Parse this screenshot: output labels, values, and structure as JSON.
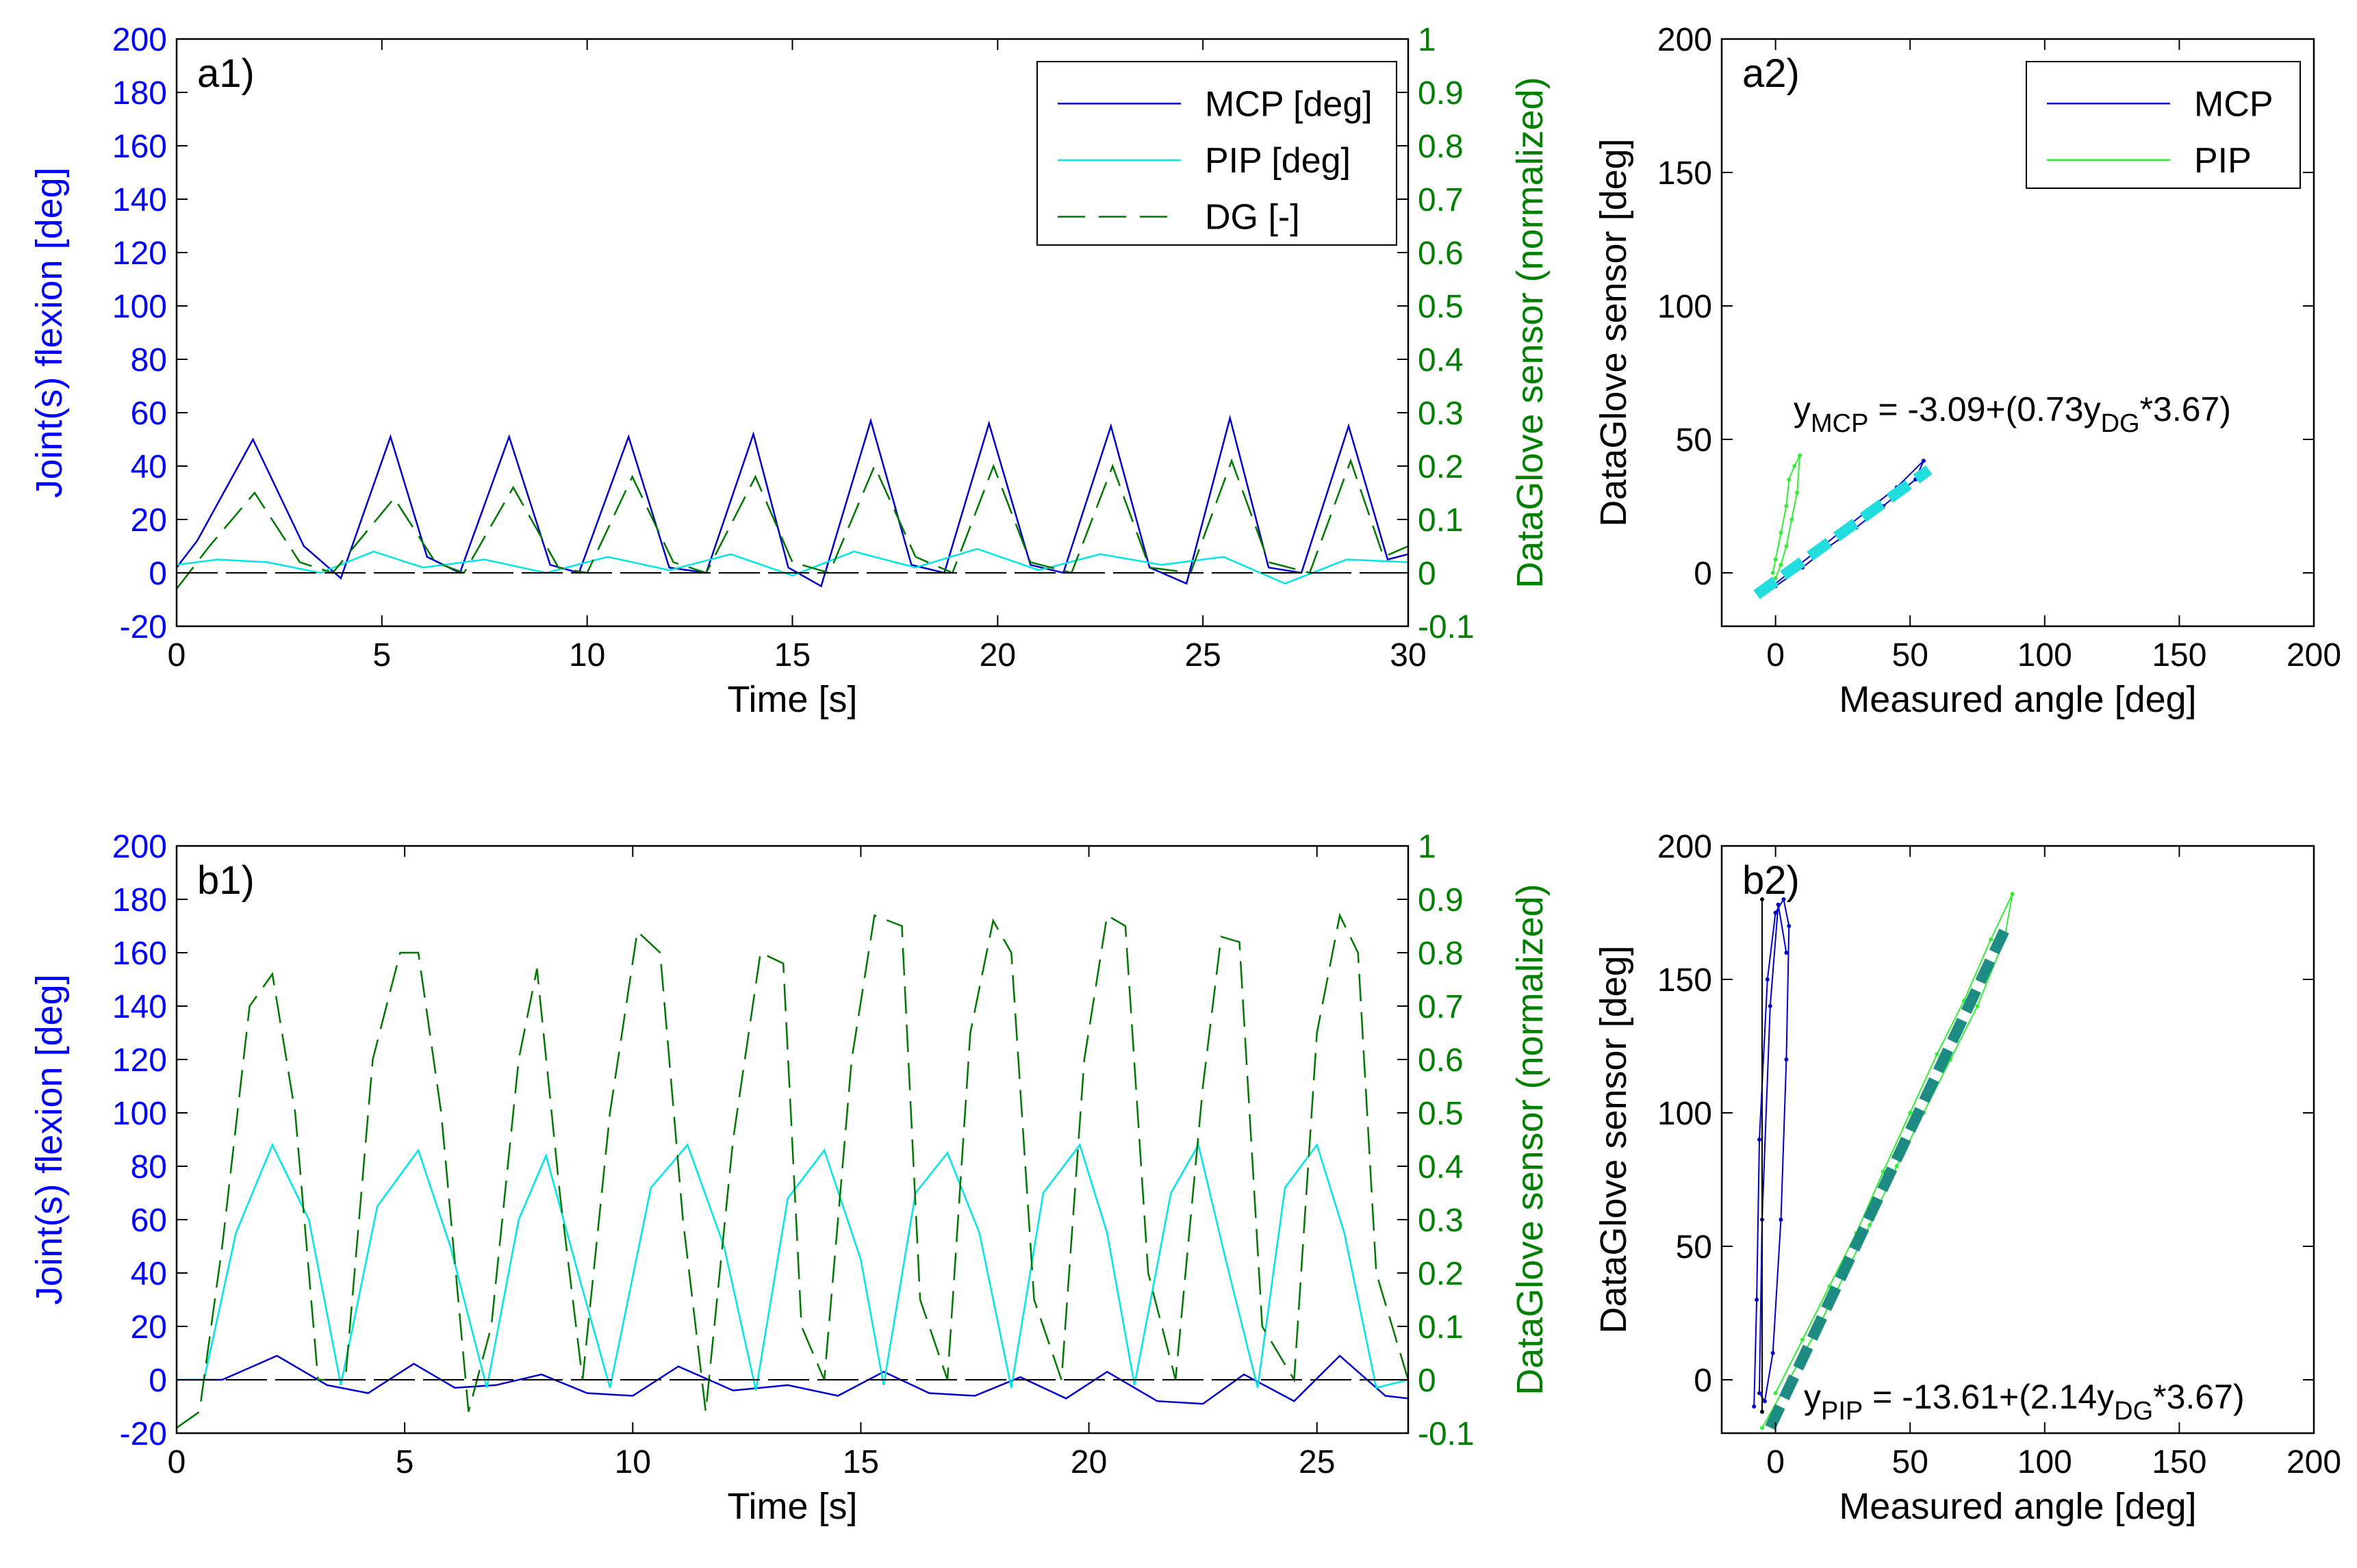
{
  "colors": {
    "mcp": "#0000cc",
    "pip_time": "#00e5e5",
    "pip_scatter": "#33ee33",
    "dg": "#007700",
    "axis": "#000000",
    "left_axis_text": "#0000ff",
    "right_axis_text": "#008000",
    "fit_a2": "#22dddd",
    "fit_b2": "#1e8c82"
  },
  "chart_data": [
    {
      "id": "a1",
      "type": "line",
      "panel_label": "a1)",
      "xlabel": "Time [s]",
      "ylabel": "Joint(s) flexion [deg]",
      "y2label": "DataGlove sensor (normalized)",
      "xlim": [
        0,
        30
      ],
      "ylim": [
        -20,
        200
      ],
      "y2lim": [
        -0.1,
        1
      ],
      "xticks": [
        "0",
        "5",
        "10",
        "15",
        "20",
        "25",
        "30"
      ],
      "yticks": [
        "-20",
        "0",
        "20",
        "40",
        "60",
        "80",
        "100",
        "120",
        "140",
        "160",
        "180",
        "200"
      ],
      "y2ticks": [
        "-0.1",
        "0",
        "0.1",
        "0.2",
        "0.3",
        "0.4",
        "0.5",
        "0.6",
        "0.7",
        "0.8",
        "0.9",
        "1"
      ],
      "legend": [
        "MCP [deg]",
        "PIP [deg]",
        "DG [-]"
      ],
      "legend_position": "top-right",
      "series": [
        {
          "name": "MCP",
          "axis": "left",
          "style": "solid",
          "color": "mcp",
          "x": [
            0,
            0.5,
            1.86,
            3.1,
            4.0,
            5.21,
            6.1,
            6.9,
            8.1,
            9.1,
            9.8,
            11.01,
            12.0,
            12.9,
            14.05,
            14.9,
            15.7,
            16.91,
            17.9,
            18.7,
            19.79,
            20.8,
            21.6,
            22.76,
            23.7,
            24.6,
            25.66,
            26.6,
            27.4,
            28.55,
            29.5,
            30
          ],
          "values": [
            2,
            12,
            50,
            10,
            -2,
            51,
            6,
            0,
            51,
            3,
            0,
            51,
            2,
            0,
            52,
            2,
            -5,
            57,
            3,
            0,
            56,
            3,
            0,
            55,
            2,
            -4,
            58,
            2,
            0,
            55,
            5,
            7
          ]
        },
        {
          "name": "PIP",
          "axis": "left",
          "style": "solid",
          "color": "pip_time",
          "x": [
            0,
            1.0,
            2.2,
            3.5,
            4.8,
            6.0,
            7.5,
            9.0,
            10.5,
            12.0,
            13.5,
            15.0,
            16.5,
            18.0,
            19.5,
            21.0,
            22.5,
            24.0,
            25.5,
            27.0,
            28.5,
            30
          ],
          "values": [
            3,
            5,
            4,
            0,
            8,
            2,
            5,
            0,
            6,
            1,
            7,
            -1,
            8,
            2,
            9,
            1,
            7,
            3,
            6,
            -4,
            5,
            4
          ]
        },
        {
          "name": "DG",
          "axis": "right",
          "style": "dashed",
          "color": "dg",
          "x": [
            0,
            0.8,
            1.9,
            3.0,
            3.8,
            5.3,
            6.3,
            7.0,
            8.2,
            9.3,
            10.0,
            11.1,
            12.1,
            12.9,
            14.1,
            15.0,
            15.9,
            17.0,
            18.0,
            18.9,
            19.9,
            20.8,
            21.8,
            22.8,
            23.7,
            24.7,
            25.7,
            26.6,
            27.6,
            28.6,
            29.4,
            30
          ],
          "values": [
            -0.03,
            0.05,
            0.15,
            0.02,
            0.0,
            0.14,
            0.02,
            0.0,
            0.16,
            0.01,
            0.0,
            0.18,
            0.02,
            0.0,
            0.18,
            0.02,
            0.0,
            0.2,
            0.03,
            0.0,
            0.2,
            0.02,
            0.0,
            0.2,
            0.01,
            0.0,
            0.21,
            0.02,
            0.0,
            0.21,
            0.03,
            0.05
          ]
        },
        {
          "name": "zero-line",
          "axis": "left",
          "style": "dashed",
          "color": "axis",
          "x": [
            0,
            30
          ],
          "values": [
            0,
            0
          ]
        }
      ]
    },
    {
      "id": "a2",
      "type": "scatter",
      "panel_label": "a2)",
      "xlabel": "Measured angle [deg]",
      "ylabel": "DataGlove sensor [deg]",
      "xlim": [
        -20,
        200
      ],
      "ylim": [
        -20,
        200
      ],
      "xticks": [
        "0",
        "50",
        "100",
        "150",
        "200"
      ],
      "yticks": [
        "0",
        "50",
        "100",
        "150",
        "200"
      ],
      "legend": [
        "MCP",
        "PIP"
      ],
      "legend_position": "top-right",
      "series": [
        {
          "name": "MCP",
          "color": "mcp",
          "x": [
            -5,
            5,
            15,
            25,
            35,
            45,
            55,
            52,
            40,
            30,
            20,
            10,
            0,
            -5
          ],
          "values": [
            -8,
            0,
            8,
            16,
            24,
            32,
            42,
            35,
            25,
            17,
            10,
            2,
            -5,
            -6
          ]
        },
        {
          "name": "PIP",
          "color": "pip_scatter",
          "x": [
            -1,
            0,
            2,
            4,
            5,
            7,
            9,
            8,
            6,
            4,
            2,
            0
          ],
          "values": [
            0,
            5,
            15,
            25,
            35,
            40,
            44,
            30,
            20,
            10,
            3,
            -2
          ]
        }
      ],
      "fit": {
        "x": [
          -7,
          57
        ],
        "values": [
          -8.2,
          38.6
        ],
        "color": "fit_a2"
      },
      "equation": {
        "prefix": "y",
        "sub1": "MCP",
        "mid": " = -3.09+(0.73y",
        "sub2": "DG",
        "suffix": "*3.67)"
      }
    },
    {
      "id": "b1",
      "type": "line",
      "panel_label": "b1)",
      "xlabel": "Time [s]",
      "ylabel": "Joint(s) flexion [deg]",
      "y2label": "DataGlove sensor (normalized)",
      "xlim": [
        0,
        27
      ],
      "ylim": [
        -20,
        200
      ],
      "y2lim": [
        -0.1,
        1
      ],
      "xticks": [
        "0",
        "5",
        "10",
        "15",
        "20",
        "25"
      ],
      "yticks": [
        "-20",
        "0",
        "20",
        "40",
        "60",
        "80",
        "100",
        "120",
        "140",
        "160",
        "180",
        "200"
      ],
      "y2ticks": [
        "-0.1",
        "0",
        "0.1",
        "0.2",
        "0.3",
        "0.4",
        "0.5",
        "0.6",
        "0.7",
        "0.8",
        "0.9",
        "1"
      ],
      "series": [
        {
          "name": "MCP",
          "axis": "left",
          "style": "solid",
          "color": "mcp",
          "x": [
            0,
            1.0,
            2.2,
            3.3,
            4.2,
            5.2,
            6.1,
            7.0,
            8.0,
            9.0,
            10.0,
            11.0,
            12.2,
            13.4,
            14.5,
            15.5,
            16.5,
            17.5,
            18.5,
            19.5,
            20.4,
            21.5,
            22.5,
            23.4,
            24.5,
            25.5,
            26.5,
            27
          ],
          "values": [
            0,
            0,
            9,
            -2,
            -5,
            6,
            -3,
            -2,
            2,
            -5,
            -6,
            5,
            -4,
            -2,
            -6,
            3,
            -5,
            -6,
            1,
            -7,
            3,
            -8,
            -9,
            2,
            -8,
            9,
            -6,
            -7
          ]
        },
        {
          "name": "PIP",
          "axis": "left",
          "style": "solid",
          "color": "pip_time",
          "x": [
            0,
            0.6,
            1.3,
            2.1,
            2.9,
            3.6,
            4.4,
            5.3,
            6.0,
            6.8,
            7.5,
            8.1,
            8.8,
            9.5,
            10.4,
            11.2,
            12.0,
            12.7,
            13.4,
            14.2,
            15.0,
            15.5,
            16.2,
            16.9,
            17.6,
            18.3,
            19.0,
            19.8,
            20.4,
            21.0,
            21.8,
            22.4,
            23.0,
            23.7,
            24.3,
            25.0,
            25.6,
            26.3,
            27
          ],
          "values": [
            0,
            0,
            55,
            88,
            60,
            -2,
            65,
            86,
            50,
            -3,
            60,
            84,
            40,
            -3,
            72,
            88,
            50,
            -4,
            68,
            86,
            45,
            -2,
            70,
            85,
            55,
            -3,
            70,
            88,
            55,
            -2,
            70,
            88,
            45,
            -3,
            72,
            88,
            55,
            -3,
            0
          ]
        },
        {
          "name": "DG",
          "axis": "right",
          "style": "dashed",
          "color": "dg",
          "x": [
            0,
            0.5,
            1.0,
            1.6,
            2.1,
            2.6,
            3.1,
            3.7,
            4.3,
            4.9,
            5.3,
            5.8,
            6.4,
            6.9,
            7.5,
            7.9,
            8.4,
            8.9,
            9.5,
            10.1,
            10.6,
            11.1,
            11.6,
            12.2,
            12.8,
            13.3,
            13.7,
            14.2,
            14.8,
            15.3,
            15.9,
            16.3,
            16.9,
            17.4,
            17.9,
            18.3,
            18.8,
            19.4,
            19.9,
            20.4,
            20.8,
            21.3,
            21.9,
            22.5,
            22.9,
            23.3,
            23.8,
            24.5,
            25.0,
            25.5,
            25.9,
            26.3,
            27
          ],
          "values": [
            -0.09,
            -0.06,
            0.25,
            0.7,
            0.76,
            0.5,
            0.0,
            0.0,
            0.6,
            0.8,
            0.8,
            0.5,
            -0.06,
            0.1,
            0.6,
            0.77,
            0.35,
            0.0,
            0.5,
            0.84,
            0.8,
            0.3,
            -0.06,
            0.45,
            0.8,
            0.78,
            0.1,
            0.0,
            0.6,
            0.87,
            0.85,
            0.15,
            0.0,
            0.65,
            0.86,
            0.8,
            0.15,
            0.0,
            0.6,
            0.87,
            0.85,
            0.2,
            0.0,
            0.55,
            0.83,
            0.82,
            0.1,
            0.0,
            0.65,
            0.87,
            0.8,
            0.2,
            0.0
          ]
        },
        {
          "name": "zero-line",
          "axis": "left",
          "style": "dashed",
          "color": "axis",
          "x": [
            0,
            27
          ],
          "values": [
            0,
            0
          ]
        }
      ]
    },
    {
      "id": "b2",
      "type": "scatter",
      "panel_label": "b2)",
      "xlabel": "Measured angle [deg]",
      "ylabel": "DataGlove sensor [deg]",
      "xlim": [
        -20,
        200
      ],
      "ylim": [
        -20,
        200
      ],
      "xticks": [
        "0",
        "50",
        "100",
        "150",
        "200"
      ],
      "yticks": [
        "0",
        "50",
        "100",
        "150",
        "200"
      ],
      "series": [
        {
          "name": "MCP",
          "color": "mcp",
          "x": [
            -8,
            -7,
            -6,
            -3,
            0,
            3,
            5,
            4,
            2,
            -1,
            -4,
            -6,
            -5,
            -2,
            1,
            4
          ],
          "values": [
            -10,
            30,
            90,
            150,
            175,
            180,
            170,
            120,
            60,
            10,
            -8,
            -5,
            60,
            140,
            178,
            160
          ]
        },
        {
          "name": "PIP",
          "color": "pip_scatter",
          "x": [
            -5,
            5,
            15,
            25,
            35,
            45,
            55,
            65,
            75,
            85,
            88,
            80,
            70,
            60,
            50,
            40,
            30,
            20,
            10,
            0
          ],
          "values": [
            -18,
            0,
            18,
            38,
            58,
            80,
            100,
            120,
            140,
            165,
            182,
            165,
            142,
            122,
            100,
            78,
            55,
            35,
            15,
            -5
          ]
        },
        {
          "name": "vertical-trace",
          "color": "axis",
          "x": [
            -5,
            -5
          ],
          "values": [
            -12,
            180
          ]
        }
      ],
      "fit": {
        "x": [
          -2,
          86
        ],
        "values": [
          -17.9,
          170.4
        ],
        "color": "fit_b2"
      },
      "equation": {
        "prefix": "y",
        "sub1": "PIP",
        "mid": " = -13.61+(2.14y",
        "sub2": "DG",
        "suffix": "*3.67)"
      }
    }
  ]
}
